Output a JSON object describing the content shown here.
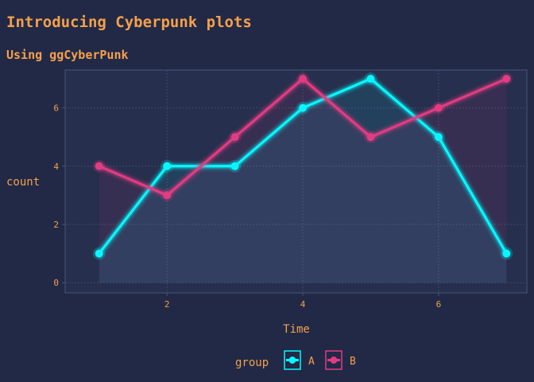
{
  "chart_data": {
    "type": "line",
    "title": "Introducing Cyberpunk plots",
    "subtitle": "Using ggCyberPunk",
    "xlabel": "Time",
    "ylabel": "count",
    "x": [
      1,
      2,
      3,
      4,
      5,
      6,
      7
    ],
    "xlim": [
      0.5,
      7.3
    ],
    "ylim": [
      -0.35,
      7.3
    ],
    "x_ticks": [
      2,
      4,
      6
    ],
    "y_ticks": [
      0,
      2,
      4,
      6
    ],
    "grid": true,
    "area_fill": true,
    "legend": {
      "title": "group",
      "position": "bottom"
    },
    "series": [
      {
        "name": "A",
        "color": "#08F7FE",
        "values": [
          1,
          4,
          4,
          6,
          7,
          5,
          1
        ]
      },
      {
        "name": "B",
        "color": "#E13C82",
        "values": [
          4,
          3,
          5,
          7,
          5,
          6,
          7
        ]
      }
    ],
    "colors": {
      "background": "#212946",
      "panel": "#262F4D",
      "grid": "#3F4A6A",
      "text": "#F5A04A"
    }
  }
}
